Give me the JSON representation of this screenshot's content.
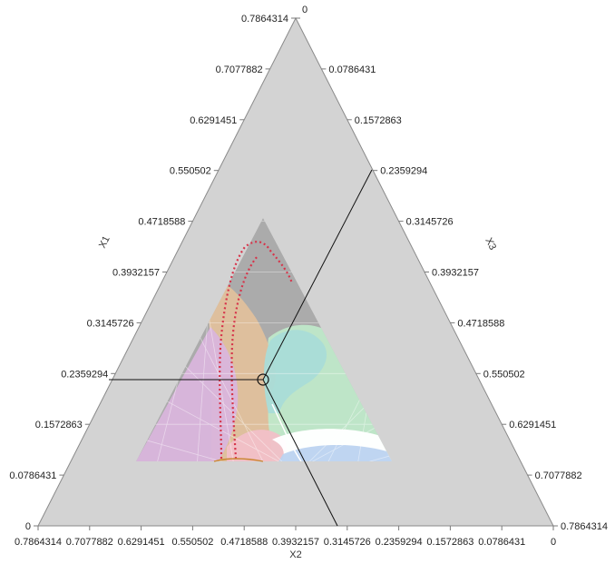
{
  "chart_data": {
    "type": "ternary-contour",
    "title": "",
    "axes": {
      "x1": {
        "label": "X1",
        "range": [
          0,
          0.7864314
        ],
        "ticks": [
          "0",
          "0.0786431",
          "0.1572863",
          "0.2359294",
          "0.3145726",
          "0.3932157",
          "0.4718588",
          "0.550502",
          "0.6291451",
          "0.7077882",
          "0.7864314"
        ]
      },
      "x2": {
        "label": "X2",
        "range": [
          0,
          0.7864314
        ],
        "ticks": [
          "0.7864314",
          "0.7077882",
          "0.6291451",
          "0.550502",
          "0.4718588",
          "0.3932157",
          "0.3145726",
          "0.2359294",
          "0.1572863",
          "0.0786431",
          "0"
        ]
      },
      "x3": {
        "label": "X3",
        "range": [
          0,
          0.7864314
        ],
        "ticks": [
          "0",
          "0.0786431",
          "0.1572863",
          "0.2359294",
          "0.3145726",
          "0.3932157",
          "0.4718588",
          "0.550502",
          "0.6291451",
          "0.7077882",
          "0.7864314"
        ]
      }
    },
    "crosshair": {
      "x1": 0.2359294,
      "x2": 0.3932157,
      "x3": 0.2359294
    },
    "feasible_region": {
      "x1_max": 0.4718588,
      "x1_min": 0.0786431,
      "note_colors": {
        "background": "#d3d3d3",
        "feasible": "#ababab",
        "green": "#bfe8c9",
        "teal": "#a9dcd8",
        "purple": "#d9b5dc",
        "orange": "#e6c29a",
        "pink": "#f1c0c8",
        "blue": "#bcd3f0",
        "white": "#ffffff",
        "red_contour": "#d6344a",
        "grid": "#ffffff",
        "axis": "#7a7a7a",
        "crosshair": "#111111"
      }
    }
  }
}
